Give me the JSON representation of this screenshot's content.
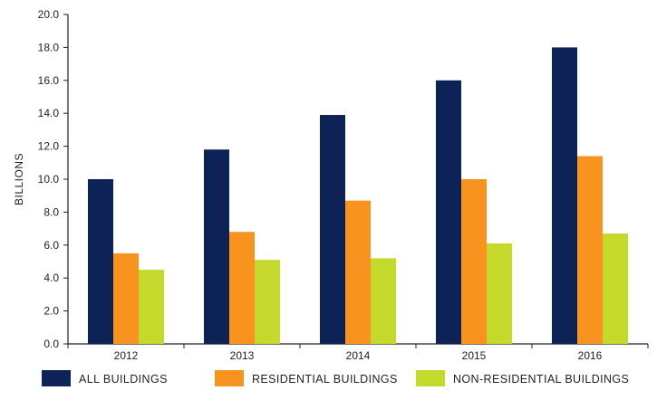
{
  "chart_data": {
    "type": "bar",
    "title": "",
    "xlabel": "",
    "ylabel": "BILLIONS",
    "ylim": [
      0,
      20
    ],
    "yticks": [
      "0.0",
      "2.0",
      "4.0",
      "6.0",
      "8.0",
      "10.0",
      "12.0",
      "14.0",
      "16.0",
      "18.0",
      "20.0"
    ],
    "categories": [
      "2012",
      "2013",
      "2014",
      "2015",
      "2016"
    ],
    "series": [
      {
        "name": "ALL BUILDINGS",
        "color": "#0d2257",
        "values": [
          10.0,
          11.8,
          13.9,
          16.0,
          18.0
        ]
      },
      {
        "name": "RESIDENTIAL BUILDINGS",
        "color": "#f7931e",
        "values": [
          5.5,
          6.8,
          8.7,
          10.0,
          11.4
        ]
      },
      {
        "name": "NON-RESIDENTIAL BUILDINGS",
        "color": "#c5d92d",
        "values": [
          4.5,
          5.1,
          5.2,
          6.1,
          6.7
        ]
      }
    ],
    "grid": false,
    "legend": "bottom"
  }
}
